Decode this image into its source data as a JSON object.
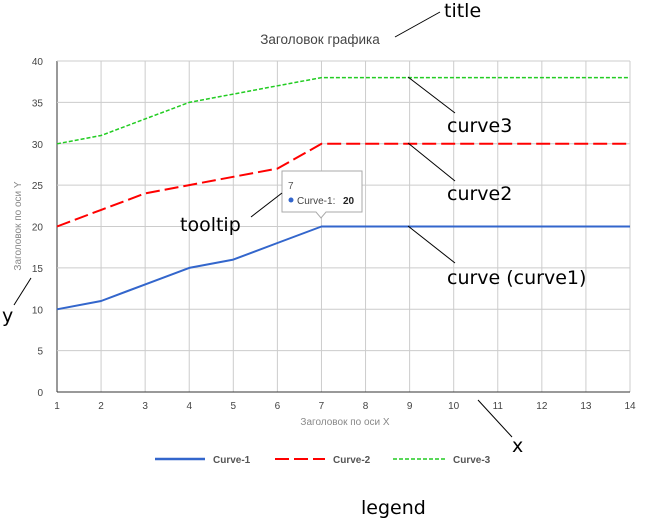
{
  "chart_data": {
    "type": "line",
    "title": "Заголовок графика",
    "xlabel": "Заголовок по оси X",
    "ylabel": "Заголовок по оси Y",
    "xlim": [
      1,
      14
    ],
    "ylim": [
      0,
      40
    ],
    "x": [
      1,
      2,
      3,
      4,
      5,
      6,
      7,
      8,
      9,
      10,
      11,
      12,
      13,
      14
    ],
    "x_ticks": [
      "1",
      "2",
      "3",
      "4",
      "5",
      "6",
      "7",
      "8",
      "9",
      "10",
      "11",
      "12",
      "13",
      "14"
    ],
    "y_ticks": [
      "0",
      "5",
      "10",
      "15",
      "20",
      "25",
      "30",
      "35",
      "40"
    ],
    "grid": true,
    "legend_position": "bottom",
    "series": [
      {
        "name": "Curve-1",
        "color": "#3366cc",
        "dash": "solid",
        "values": [
          10,
          11,
          13,
          15,
          16,
          18,
          20,
          20,
          20,
          20,
          20,
          20,
          20,
          20
        ]
      },
      {
        "name": "Curve-2",
        "color": "#ff0000",
        "dash": "long-dash",
        "values": [
          20,
          22,
          24,
          25,
          26,
          27,
          30,
          30,
          30,
          30,
          30,
          30,
          30,
          30
        ]
      },
      {
        "name": "Curve-3",
        "color": "#22cc22",
        "dash": "short-dash",
        "values": [
          30,
          31,
          33,
          35,
          36,
          37,
          38,
          38,
          38,
          38,
          38,
          38,
          38,
          38
        ]
      }
    ],
    "tooltip": {
      "x_label": "7",
      "series_label": "Curve-1:",
      "value_label": "20",
      "series_index": 0,
      "point_x": 7
    },
    "annotations": {
      "title": "title",
      "curve3": "curve3",
      "curve2": "curve2",
      "curve1": "curve (curve1)",
      "tooltip": "tooltip",
      "y": "y",
      "x": "x",
      "legend": "legend"
    }
  }
}
